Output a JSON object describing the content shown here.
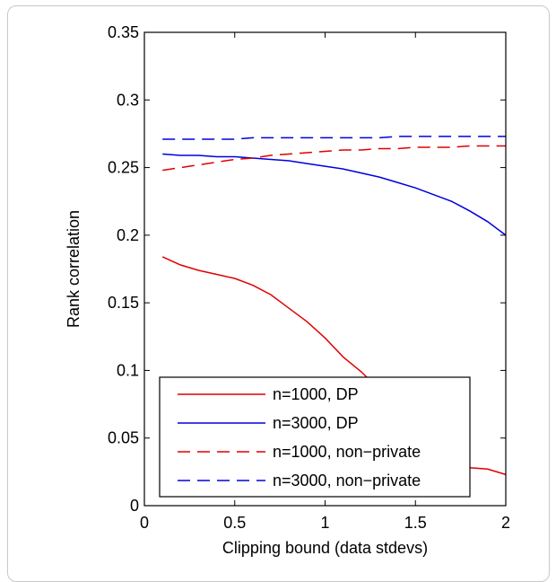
{
  "chart_data": {
    "type": "line",
    "title": "",
    "xlabel": "Clipping bound (data stdevs)",
    "ylabel": "Rank correlation",
    "xlim": [
      0,
      2
    ],
    "ylim": [
      0,
      0.35
    ],
    "xticks": [
      0,
      0.5,
      1,
      1.5,
      2
    ],
    "xtick_labels": [
      "0",
      "0.5",
      "1",
      "1.5",
      "2"
    ],
    "yticks": [
      0,
      0.05,
      0.1,
      0.15,
      0.2,
      0.25,
      0.3,
      0.35
    ],
    "ytick_labels": [
      "0",
      "0.05",
      "0.1",
      "0.15",
      "0.2",
      "0.25",
      "0.3",
      "0.35"
    ],
    "grid": false,
    "legend_position": "bottom-left",
    "series": [
      {
        "name": "n=1000, DP",
        "color": "#e00000",
        "dash": "solid",
        "x": [
          0.1,
          0.2,
          0.3,
          0.4,
          0.5,
          0.6,
          0.7,
          0.8,
          0.9,
          1.0,
          1.1,
          1.2,
          1.3,
          1.4,
          1.5,
          1.6,
          1.7,
          1.8,
          1.9,
          2.0
        ],
        "y": [
          0.184,
          0.178,
          0.174,
          0.171,
          0.168,
          0.163,
          0.156,
          0.146,
          0.136,
          0.124,
          0.11,
          0.099,
          0.086,
          0.074,
          0.061,
          0.049,
          0.037,
          0.028,
          0.027,
          0.023
        ]
      },
      {
        "name": "n=3000, DP",
        "color": "#0000e0",
        "dash": "solid",
        "x": [
          0.1,
          0.2,
          0.3,
          0.4,
          0.5,
          0.6,
          0.7,
          0.8,
          0.9,
          1.0,
          1.1,
          1.2,
          1.3,
          1.4,
          1.5,
          1.6,
          1.7,
          1.8,
          1.9,
          2.0
        ],
        "y": [
          0.26,
          0.259,
          0.259,
          0.258,
          0.258,
          0.257,
          0.256,
          0.255,
          0.253,
          0.251,
          0.249,
          0.246,
          0.243,
          0.239,
          0.235,
          0.23,
          0.225,
          0.218,
          0.21,
          0.2
        ]
      },
      {
        "name": "n=1000, non−private",
        "color": "#e00000",
        "dash": "dashed",
        "x": [
          0.1,
          0.2,
          0.3,
          0.4,
          0.5,
          0.6,
          0.7,
          0.8,
          0.9,
          1.0,
          1.1,
          1.2,
          1.3,
          1.4,
          1.5,
          1.6,
          1.7,
          1.8,
          1.9,
          2.0
        ],
        "y": [
          0.248,
          0.25,
          0.252,
          0.254,
          0.256,
          0.257,
          0.259,
          0.26,
          0.261,
          0.262,
          0.263,
          0.263,
          0.264,
          0.264,
          0.265,
          0.265,
          0.265,
          0.266,
          0.266,
          0.266
        ]
      },
      {
        "name": "n=3000, non−private",
        "color": "#0000e0",
        "dash": "dashed",
        "x": [
          0.1,
          0.2,
          0.3,
          0.4,
          0.5,
          0.6,
          0.7,
          0.8,
          0.9,
          1.0,
          1.1,
          1.2,
          1.3,
          1.4,
          1.5,
          1.6,
          1.7,
          1.8,
          1.9,
          2.0
        ],
        "y": [
          0.271,
          0.271,
          0.271,
          0.271,
          0.271,
          0.272,
          0.272,
          0.272,
          0.272,
          0.272,
          0.272,
          0.272,
          0.272,
          0.273,
          0.273,
          0.273,
          0.273,
          0.273,
          0.273,
          0.273
        ]
      }
    ]
  }
}
